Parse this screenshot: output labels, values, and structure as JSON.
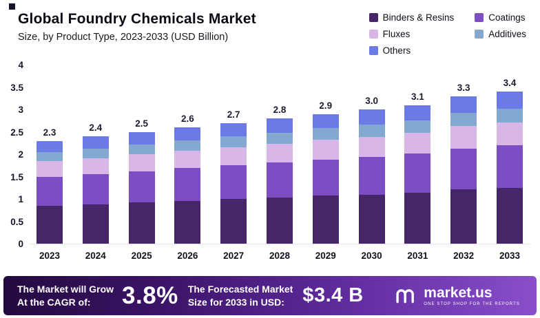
{
  "chart_data": {
    "type": "bar",
    "stacked": true,
    "title": "Global Foundry Chemicals Market",
    "subtitle": "Size, by Product Type, 2023-2033 (USD Billion)",
    "unit": "USD Billion",
    "categories": [
      "2023",
      "2024",
      "2025",
      "2026",
      "2027",
      "2028",
      "2029",
      "2030",
      "2031",
      "2032",
      "2033"
    ],
    "series": [
      {
        "name": "Binders & Resins",
        "color": "#472569",
        "values": [
          0.85,
          0.88,
          0.92,
          0.96,
          1.0,
          1.03,
          1.07,
          1.1,
          1.14,
          1.21,
          1.25
        ]
      },
      {
        "name": "Coatings",
        "color": "#7d4ec3",
        "values": [
          0.65,
          0.67,
          0.7,
          0.73,
          0.75,
          0.78,
          0.81,
          0.84,
          0.87,
          0.92,
          0.95
        ]
      },
      {
        "name": "Fluxes",
        "color": "#d9b6e8",
        "values": [
          0.35,
          0.36,
          0.38,
          0.39,
          0.41,
          0.42,
          0.44,
          0.45,
          0.47,
          0.5,
          0.51
        ]
      },
      {
        "name": "Additives",
        "color": "#83a9d0",
        "values": [
          0.2,
          0.22,
          0.22,
          0.23,
          0.24,
          0.25,
          0.26,
          0.27,
          0.27,
          0.29,
          0.3
        ]
      },
      {
        "name": "Others",
        "color": "#6b7ae4",
        "values": [
          0.25,
          0.27,
          0.28,
          0.29,
          0.3,
          0.32,
          0.32,
          0.34,
          0.35,
          0.38,
          0.39
        ]
      }
    ],
    "totals": [
      2.3,
      2.4,
      2.5,
      2.6,
      2.7,
      2.8,
      2.9,
      3.0,
      3.1,
      3.3,
      3.4
    ],
    "ylim": [
      0,
      4
    ],
    "yticks": [
      0,
      0.5,
      1,
      1.5,
      2,
      2.5,
      3,
      3.5,
      4
    ],
    "grid": false,
    "legend_position": "top-right"
  },
  "banner": {
    "cagr_label_line1": "The Market will Grow",
    "cagr_label_line2": "At the CAGR of:",
    "cagr_value": "3.8%",
    "forecast_label_line1": "The Forecasted Market",
    "forecast_label_line2": "Size for 2033 in USD:",
    "forecast_value": "$3.4 B",
    "brand": "market.us",
    "brand_tagline": "ONE STOP SHOP FOR THE REPORTS"
  }
}
